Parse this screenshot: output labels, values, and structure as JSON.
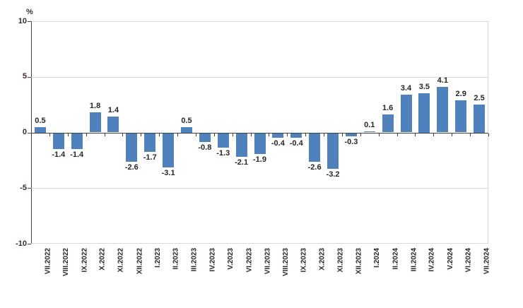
{
  "chart_data": {
    "type": "bar",
    "title": "",
    "ylabel": "%",
    "xlabel": "",
    "ylim": [
      -10,
      10
    ],
    "yticks": [
      10,
      5,
      0,
      -5,
      -10
    ],
    "grid": true,
    "legend": null,
    "categories": [
      "VII.2022",
      "VIII.2022",
      "IX.2022",
      "X.2022",
      "XI.2022",
      "XII.2022",
      "I.2023",
      "II.2023",
      "III.2023",
      "IV.2023",
      "V.2023",
      "VI.2023",
      "VII.2023",
      "VIII.2023",
      "IX.2023",
      "X.2023",
      "XI.2023",
      "XII.2023",
      "I.2024",
      "II.2024",
      "III.2024",
      "IV.2024",
      "V.2024",
      "VI.2024",
      "VII.2024"
    ],
    "values": [
      0.5,
      -1.4,
      -1.4,
      1.8,
      1.4,
      -2.6,
      -1.7,
      -3.1,
      0.5,
      -0.8,
      -1.3,
      -2.1,
      -1.9,
      -0.4,
      -0.4,
      -2.6,
      -3.2,
      -0.3,
      0.1,
      1.6,
      3.4,
      3.5,
      4.1,
      2.9,
      2.5
    ],
    "colors": {
      "bar": "#4f81bd",
      "gridline": "#d9d9d9",
      "axis": "#404040",
      "text": "#262626"
    }
  }
}
